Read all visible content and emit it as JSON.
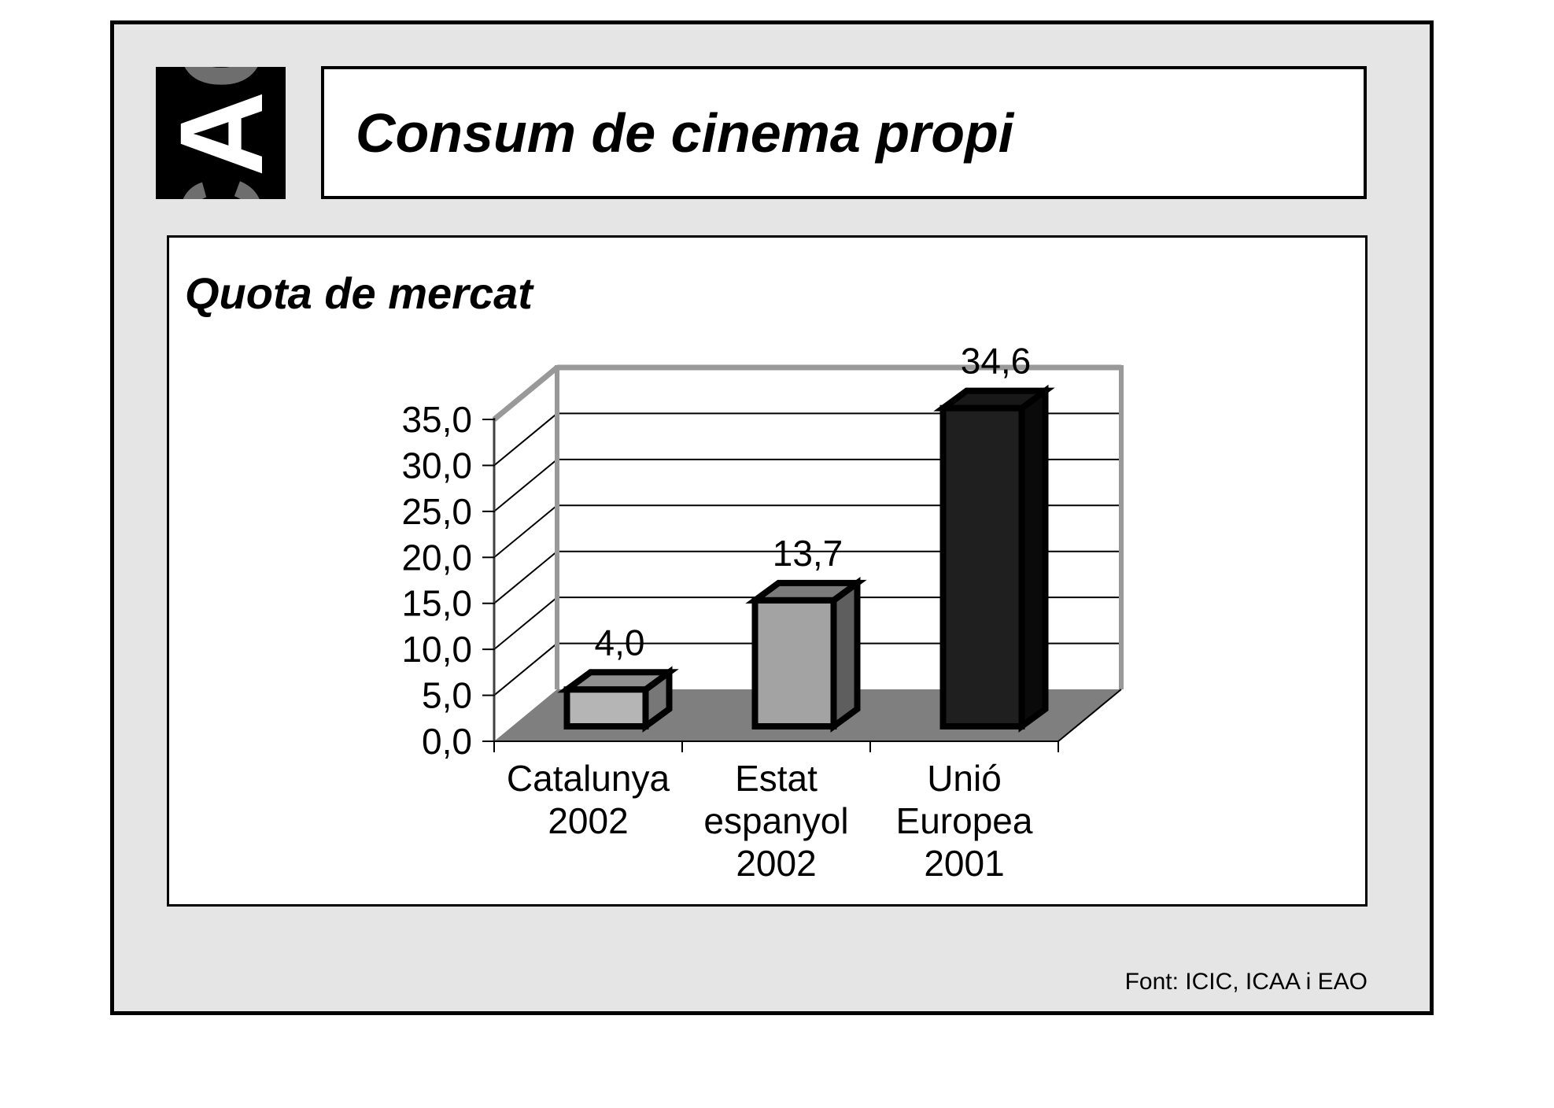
{
  "slide": {
    "title": "Consum de cinema propi",
    "footer": "Font: ICIC, ICAA i EAO",
    "logo": {
      "letters": [
        "C",
        "A",
        "C"
      ],
      "background": "#000000",
      "accent_color": "#ffffff",
      "side_color": "#6e6e6e"
    }
  },
  "chart": {
    "title": "Quota de mercat"
  },
  "chart_data": {
    "type": "bar",
    "projection": "3d",
    "title": "Quota de mercat",
    "categories": [
      "Catalunya 2002",
      "Estat espanyol 2002",
      "Unió Europea 2001"
    ],
    "category_lines": [
      [
        "Catalunya",
        "2002"
      ],
      [
        "Estat",
        "espanyol",
        "2002"
      ],
      [
        "Unió",
        "Europea",
        "2001"
      ]
    ],
    "values": [
      4.0,
      13.7,
      34.6
    ],
    "value_labels": [
      "4,0",
      "13,7",
      "34,6"
    ],
    "ylim": [
      0,
      35
    ],
    "y_tick_step": 5,
    "y_tick_labels": [
      "0,0",
      "5,0",
      "10,0",
      "15,0",
      "20,0",
      "25,0",
      "30,0",
      "35,0"
    ],
    "grid": true,
    "legend": false,
    "decimal_separator": ",",
    "bar_colors": [
      {
        "front": "#b5b5b5",
        "top": "#8f8f8f",
        "side": "#777777"
      },
      {
        "front": "#a3a3a3",
        "top": "#7b7b7b",
        "side": "#5e5e5e"
      },
      {
        "front": "#1f1f1f",
        "top": "#181818",
        "side": "#0a0a0a"
      }
    ],
    "floor_color": "#7f7f7f",
    "wall_border_color": "#999999",
    "gridline_color": "#000000",
    "outline_color": "#000000",
    "text_color": "#000000"
  }
}
